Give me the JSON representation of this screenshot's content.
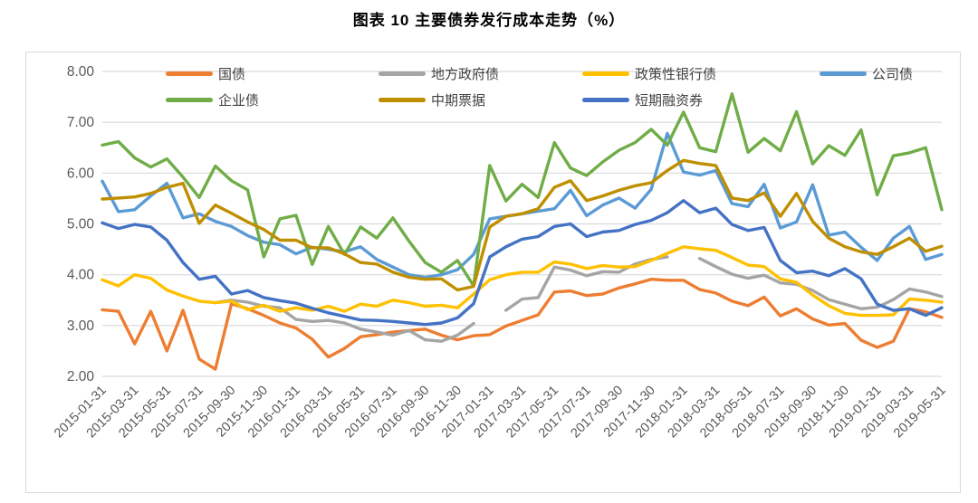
{
  "title": "图表 10 主要债券发行成本走势（%）",
  "chart_data": {
    "type": "line",
    "title": "图表 10 主要债券发行成本走势（%）",
    "grid": "horizontal",
    "legend_position": "top-inside",
    "x_label_step": 2,
    "y_axis": {
      "min": 2,
      "max": 8,
      "step": 1,
      "tick_labels": [
        "2.00",
        "3.00",
        "4.00",
        "5.00",
        "6.00",
        "7.00",
        "8.00"
      ]
    },
    "x": [
      "2015-01-31",
      "2015-02-28",
      "2015-03-31",
      "2015-04-30",
      "2015-05-31",
      "2015-06-30",
      "2015-07-31",
      "2015-08-31",
      "2015-09-30",
      "2015-10-31",
      "2015-11-30",
      "2015-12-31",
      "2016-01-31",
      "2016-02-29",
      "2016-03-31",
      "2016-04-30",
      "2016-05-31",
      "2016-06-30",
      "2016-07-31",
      "2016-08-31",
      "2016-09-30",
      "2016-10-31",
      "2016-11-30",
      "2016-12-31",
      "2017-01-31",
      "2017-02-28",
      "2017-03-31",
      "2017-04-30",
      "2017-05-31",
      "2017-06-30",
      "2017-07-31",
      "2017-08-31",
      "2017-09-30",
      "2017-10-31",
      "2017-11-30",
      "2017-12-31",
      "2018-01-31",
      "2018-02-28",
      "2018-03-31",
      "2018-04-30",
      "2018-05-31",
      "2018-06-30",
      "2018-07-31",
      "2018-08-31",
      "2018-09-30",
      "2018-10-31",
      "2018-11-30",
      "2018-12-31",
      "2019-01-31",
      "2019-02-28",
      "2019-03-31",
      "2019-04-30",
      "2019-05-31"
    ],
    "series": [
      {
        "name": "国债",
        "color": "#ED7D31",
        "values": [
          3.31,
          3.28,
          2.64,
          3.28,
          2.5,
          3.3,
          2.34,
          2.14,
          3.43,
          3.33,
          3.2,
          3.05,
          2.95,
          2.73,
          2.38,
          2.55,
          2.78,
          2.82,
          2.87,
          2.9,
          2.93,
          2.81,
          2.72,
          2.8,
          2.82,
          2.99,
          3.1,
          3.21,
          3.66,
          3.68,
          3.59,
          3.62,
          3.74,
          3.82,
          3.91,
          3.89,
          3.89,
          3.71,
          3.64,
          3.48,
          3.39,
          3.56,
          3.19,
          3.33,
          3.13,
          3.01,
          3.04,
          2.71,
          2.57,
          2.69,
          3.33,
          3.27,
          3.16
        ]
      },
      {
        "name": "地方政府债",
        "color": "#A5A5A5",
        "values": [
          null,
          null,
          null,
          null,
          null,
          null,
          null,
          3.45,
          3.5,
          3.46,
          3.38,
          3.35,
          3.12,
          3.08,
          3.1,
          3.05,
          2.93,
          2.87,
          2.81,
          2.9,
          2.72,
          2.69,
          2.81,
          3.04,
          null,
          3.3,
          3.52,
          3.55,
          4.15,
          4.09,
          3.98,
          4.06,
          4.05,
          4.21,
          4.3,
          4.35,
          null,
          4.32,
          4.16,
          4.01,
          3.93,
          3.99,
          3.84,
          3.81,
          3.69,
          3.51,
          3.42,
          3.33,
          3.36,
          3.51,
          3.72,
          3.66,
          3.57
        ]
      },
      {
        "name": "政策性银行债",
        "color": "#FFC000",
        "values": [
          3.9,
          3.78,
          4.0,
          3.93,
          3.7,
          3.58,
          3.48,
          3.45,
          3.48,
          3.31,
          3.4,
          3.28,
          3.35,
          3.3,
          3.38,
          3.28,
          3.42,
          3.38,
          3.5,
          3.45,
          3.38,
          3.4,
          3.35,
          3.62,
          3.9,
          4.0,
          4.05,
          4.05,
          4.25,
          4.21,
          4.12,
          4.18,
          4.15,
          4.16,
          4.28,
          4.42,
          4.55,
          4.51,
          4.48,
          4.34,
          4.19,
          4.16,
          3.92,
          3.85,
          3.6,
          3.39,
          3.24,
          3.2,
          3.2,
          3.21,
          3.52,
          3.5,
          3.46
        ]
      },
      {
        "name": "公司债",
        "color": "#5B9BD5",
        "values": [
          5.84,
          5.24,
          5.28,
          5.55,
          5.8,
          5.12,
          5.2,
          5.05,
          4.95,
          4.77,
          4.64,
          4.59,
          4.41,
          4.54,
          4.5,
          4.45,
          4.55,
          4.3,
          4.15,
          4.0,
          3.95,
          4.0,
          4.1,
          4.4,
          5.1,
          5.15,
          5.2,
          5.25,
          5.3,
          5.66,
          5.16,
          5.37,
          5.51,
          5.31,
          5.68,
          6.78,
          6.02,
          5.96,
          6.05,
          5.4,
          5.34,
          5.78,
          4.92,
          5.04,
          5.77,
          4.78,
          4.84,
          4.54,
          4.28,
          4.72,
          4.95,
          4.3,
          4.4
        ]
      },
      {
        "name": "企业债",
        "color": "#70AD47",
        "values": [
          6.55,
          6.62,
          6.3,
          6.12,
          6.28,
          5.92,
          5.52,
          6.14,
          5.85,
          5.67,
          4.35,
          5.1,
          5.17,
          4.2,
          4.95,
          4.4,
          4.94,
          4.72,
          5.12,
          4.66,
          4.24,
          4.05,
          4.28,
          3.78,
          6.15,
          5.45,
          5.78,
          5.52,
          6.6,
          6.1,
          5.95,
          6.22,
          6.45,
          6.6,
          6.86,
          6.55,
          7.2,
          6.5,
          6.42,
          7.56,
          6.41,
          6.68,
          6.44,
          7.21,
          6.18,
          6.54,
          6.35,
          6.85,
          5.57,
          6.34,
          6.4,
          6.5,
          5.28
        ]
      },
      {
        "name": "中期票据",
        "color": "#BF8F00",
        "values": [
          5.49,
          5.51,
          5.53,
          5.6,
          5.72,
          5.8,
          5.01,
          5.37,
          5.21,
          5.04,
          4.89,
          4.68,
          4.68,
          4.53,
          4.53,
          4.41,
          4.24,
          4.21,
          4.05,
          3.95,
          3.91,
          3.92,
          3.7,
          3.77,
          4.94,
          5.15,
          5.2,
          5.3,
          5.72,
          5.85,
          5.46,
          5.55,
          5.66,
          5.75,
          5.81,
          6.05,
          6.25,
          6.19,
          6.15,
          5.51,
          5.46,
          5.61,
          5.15,
          5.6,
          5.05,
          4.72,
          4.55,
          4.45,
          4.4,
          4.55,
          4.72,
          4.46,
          4.56
        ]
      },
      {
        "name": "短期融资券",
        "color": "#4472C4",
        "values": [
          5.02,
          4.91,
          4.99,
          4.94,
          4.68,
          4.24,
          3.91,
          3.97,
          3.62,
          3.69,
          3.55,
          3.49,
          3.44,
          3.34,
          3.25,
          3.18,
          3.11,
          3.1,
          3.08,
          3.05,
          3.02,
          3.05,
          3.15,
          3.43,
          4.35,
          4.55,
          4.7,
          4.75,
          4.95,
          5.0,
          4.75,
          4.84,
          4.87,
          4.99,
          5.07,
          5.22,
          5.46,
          5.22,
          5.31,
          4.99,
          4.87,
          4.93,
          4.28,
          4.04,
          4.07,
          3.98,
          4.12,
          3.92,
          3.42,
          3.3,
          3.33,
          3.2,
          3.35
        ]
      }
    ],
    "legend_rows": [
      [
        0,
        1,
        2,
        3
      ],
      [
        4,
        5,
        6
      ]
    ]
  }
}
